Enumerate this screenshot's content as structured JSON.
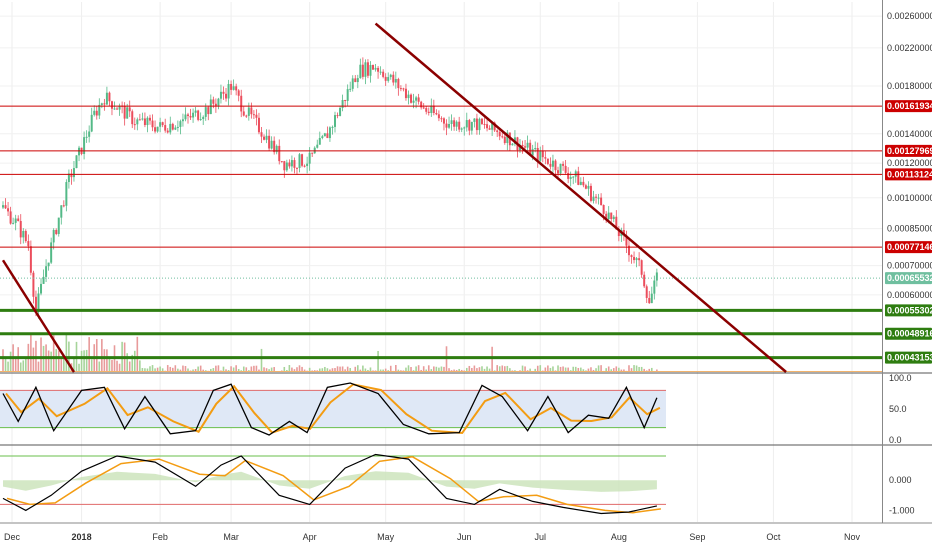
{
  "chart_data": [
    {
      "type": "candlestick",
      "title": "",
      "time_axis": [
        "Dec",
        "2018",
        "Feb",
        "Mar",
        "Apr",
        "May",
        "Jun",
        "Jul",
        "Aug",
        "Sep",
        "Oct",
        "Nov"
      ],
      "y_scale": "log",
      "y_ticks": [
        "0.00260000",
        "0.00220000",
        "0.00180000",
        "0.00140000",
        "0.00120000",
        "0.00100000",
        "0.00085000",
        "0.00070000",
        "0.00060000"
      ],
      "ylim": [
        0.0004,
        0.0028
      ],
      "price_levels": [
        {
          "label": "0.00161934",
          "value": 0.00161934,
          "color": "#cc0000"
        },
        {
          "label": "0.00127969",
          "value": 0.00127969,
          "color": "#cc0000"
        },
        {
          "label": "0.00113124",
          "value": 0.00113124,
          "color": "#cc0000"
        },
        {
          "label": "0.00077146",
          "value": 0.00077146,
          "color": "#cc0000"
        },
        {
          "label": "0.00065532",
          "value": 0.00065532,
          "color": "#6fbf9f"
        },
        {
          "label": "0.00055302",
          "value": 0.00055302,
          "color": "#2e7d10"
        },
        {
          "label": "0.00048916",
          "value": 0.00048916,
          "color": "#2e7d10"
        },
        {
          "label": "0.00043153",
          "value": 0.00043153,
          "color": "#2e7d10"
        }
      ],
      "trendlines": [
        {
          "from": {
            "date": "2018-04-27",
            "price": 0.0025
          },
          "to": {
            "date": "2018-10-06",
            "price": 0.0004
          },
          "color": "#8b0000"
        },
        {
          "from": {
            "date": "2017-12-01",
            "price": 0.00072
          },
          "to": {
            "date": "2017-12-29",
            "price": 0.0004
          },
          "color": "#8b0000"
        }
      ],
      "price_path": [
        {
          "date": "2017-12-01",
          "price": 0.00095
        },
        {
          "date": "2017-12-06",
          "price": 0.00088
        },
        {
          "date": "2017-12-11",
          "price": 0.00078
        },
        {
          "date": "2017-12-14",
          "price": 0.00055
        },
        {
          "date": "2017-12-18",
          "price": 0.0007
        },
        {
          "date": "2017-12-23",
          "price": 0.0009
        },
        {
          "date": "2017-12-27",
          "price": 0.0011
        },
        {
          "date": "2018-01-01",
          "price": 0.0013
        },
        {
          "date": "2018-01-06",
          "price": 0.00155
        },
        {
          "date": "2018-01-10",
          "price": 0.0017
        },
        {
          "date": "2018-01-16",
          "price": 0.0016
        },
        {
          "date": "2018-01-22",
          "price": 0.0015
        },
        {
          "date": "2018-02-01",
          "price": 0.00145
        },
        {
          "date": "2018-02-10",
          "price": 0.0015
        },
        {
          "date": "2018-02-20",
          "price": 0.0016
        },
        {
          "date": "2018-03-01",
          "price": 0.0018
        },
        {
          "date": "2018-03-06",
          "price": 0.0016
        },
        {
          "date": "2018-03-14",
          "price": 0.0014
        },
        {
          "date": "2018-03-22",
          "price": 0.0012
        },
        {
          "date": "2018-04-01",
          "price": 0.00122
        },
        {
          "date": "2018-04-08",
          "price": 0.0014
        },
        {
          "date": "2018-04-14",
          "price": 0.00165
        },
        {
          "date": "2018-04-20",
          "price": 0.00195
        },
        {
          "date": "2018-04-27",
          "price": 0.002
        },
        {
          "date": "2018-05-06",
          "price": 0.0018
        },
        {
          "date": "2018-05-16",
          "price": 0.0016
        },
        {
          "date": "2018-05-26",
          "price": 0.00148
        },
        {
          "date": "2018-06-05",
          "price": 0.00148
        },
        {
          "date": "2018-06-16",
          "price": 0.0014
        },
        {
          "date": "2018-06-27",
          "price": 0.00128
        },
        {
          "date": "2018-07-06",
          "price": 0.0012
        },
        {
          "date": "2018-07-16",
          "price": 0.0011
        },
        {
          "date": "2018-07-26",
          "price": 0.00095
        },
        {
          "date": "2018-08-04",
          "price": 0.00078
        },
        {
          "date": "2018-08-10",
          "price": 0.00068
        },
        {
          "date": "2018-08-13",
          "price": 0.00058
        },
        {
          "date": "2018-08-16",
          "price": 0.00065
        }
      ]
    },
    {
      "type": "line",
      "title": "",
      "y_ticks": [
        "100.0",
        "50.0",
        "0.0"
      ],
      "ylim": [
        0,
        100
      ],
      "bands": [
        80,
        20
      ],
      "series_k": [
        {
          "date": "2017-12-01",
          "value": 75
        },
        {
          "date": "2017-12-07",
          "value": 30
        },
        {
          "date": "2017-12-14",
          "value": 85
        },
        {
          "date": "2017-12-21",
          "value": 15
        },
        {
          "date": "2018-01-01",
          "value": 80
        },
        {
          "date": "2018-01-10",
          "value": 85
        },
        {
          "date": "2018-01-18",
          "value": 18
        },
        {
          "date": "2018-01-26",
          "value": 70
        },
        {
          "date": "2018-02-05",
          "value": 10
        },
        {
          "date": "2018-02-15",
          "value": 15
        },
        {
          "date": "2018-02-22",
          "value": 80
        },
        {
          "date": "2018-03-01",
          "value": 90
        },
        {
          "date": "2018-03-09",
          "value": 20
        },
        {
          "date": "2018-03-16",
          "value": 8
        },
        {
          "date": "2018-03-24",
          "value": 30
        },
        {
          "date": "2018-03-31",
          "value": 12
        },
        {
          "date": "2018-04-08",
          "value": 85
        },
        {
          "date": "2018-04-17",
          "value": 92
        },
        {
          "date": "2018-04-28",
          "value": 75
        },
        {
          "date": "2018-05-08",
          "value": 25
        },
        {
          "date": "2018-05-18",
          "value": 10
        },
        {
          "date": "2018-05-30",
          "value": 12
        },
        {
          "date": "2018-06-08",
          "value": 88
        },
        {
          "date": "2018-06-16",
          "value": 70
        },
        {
          "date": "2018-06-26",
          "value": 15
        },
        {
          "date": "2018-07-04",
          "value": 70
        },
        {
          "date": "2018-07-12",
          "value": 12
        },
        {
          "date": "2018-07-20",
          "value": 40
        },
        {
          "date": "2018-07-28",
          "value": 35
        },
        {
          "date": "2018-08-04",
          "value": 85
        },
        {
          "date": "2018-08-11",
          "value": 20
        },
        {
          "date": "2018-08-16",
          "value": 68
        }
      ]
    },
    {
      "type": "line",
      "title": "",
      "y_ticks": [
        "0.000",
        "-1.000"
      ],
      "ylim": [
        -1.25,
        1.0
      ],
      "bands": [
        0.8,
        -0.8
      ],
      "series_main": [
        {
          "date": "2017-12-01",
          "value": -0.6
        },
        {
          "date": "2017-12-10",
          "value": -1.0
        },
        {
          "date": "2017-12-20",
          "value": -0.5
        },
        {
          "date": "2018-01-01",
          "value": 0.3
        },
        {
          "date": "2018-01-15",
          "value": 0.8
        },
        {
          "date": "2018-01-30",
          "value": 0.6
        },
        {
          "date": "2018-02-15",
          "value": -0.2
        },
        {
          "date": "2018-02-25",
          "value": 0.5
        },
        {
          "date": "2018-03-05",
          "value": 0.8
        },
        {
          "date": "2018-03-20",
          "value": -0.5
        },
        {
          "date": "2018-04-01",
          "value": -0.8
        },
        {
          "date": "2018-04-15",
          "value": 0.4
        },
        {
          "date": "2018-04-27",
          "value": 0.85
        },
        {
          "date": "2018-05-10",
          "value": 0.7
        },
        {
          "date": "2018-05-25",
          "value": -0.6
        },
        {
          "date": "2018-06-05",
          "value": -0.8
        },
        {
          "date": "2018-06-15",
          "value": -0.3
        },
        {
          "date": "2018-06-28",
          "value": -0.7
        },
        {
          "date": "2018-07-10",
          "value": -0.9
        },
        {
          "date": "2018-07-25",
          "value": -1.1
        },
        {
          "date": "2018-08-05",
          "value": -1.05
        },
        {
          "date": "2018-08-16",
          "value": -0.85
        }
      ]
    }
  ]
}
